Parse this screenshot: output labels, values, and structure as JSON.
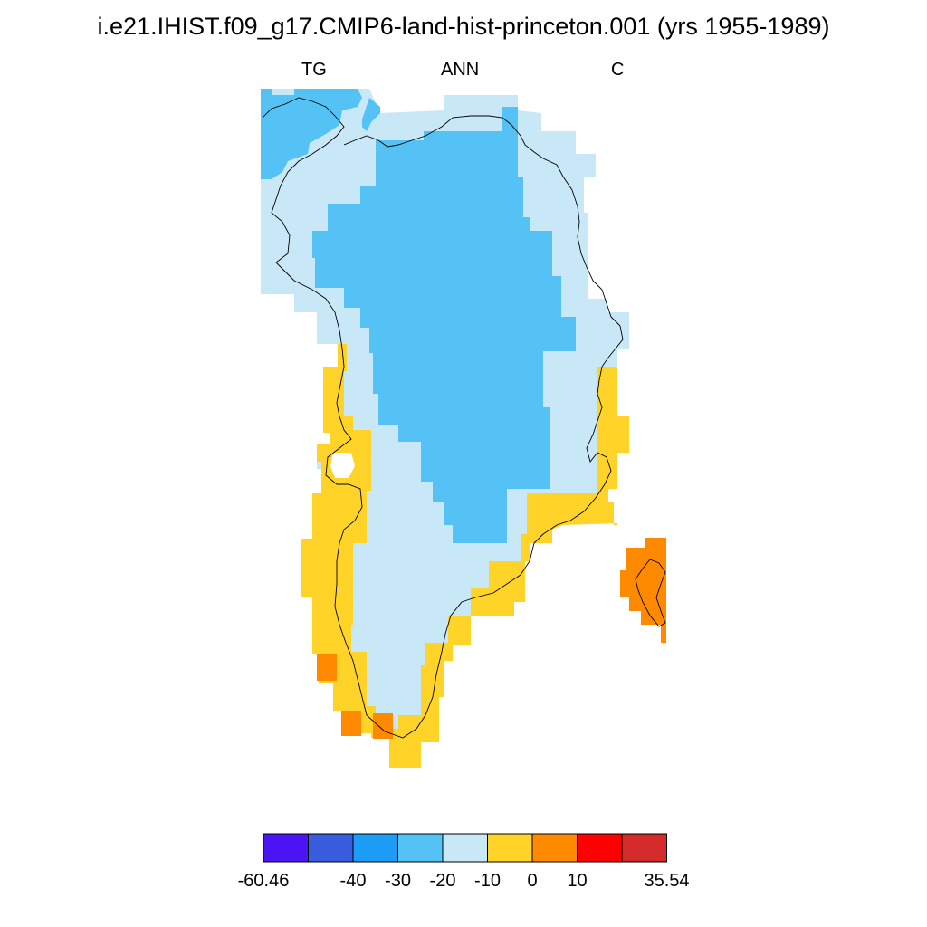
{
  "title": "i.e21.IHIST.f09_g17.CMIP6-land-hist-princeton.001 (yrs 1955-1989)",
  "subtitles": {
    "left": "TG",
    "center": "ANN",
    "right": "C"
  },
  "colorbar": {
    "colors": [
      "#4a14f5",
      "#3a5de0",
      "#1c9cf5",
      "#55c2f5",
      "#c8e7f7",
      "#ffd328",
      "#ff8a00",
      "#ff0000",
      "#d42a2a"
    ],
    "labels": [
      "-60.46",
      "-40",
      "-30",
      "-20",
      "-10",
      "0",
      "10",
      "35.54"
    ],
    "label_boundary_index": [
      0,
      2,
      3,
      4,
      5,
      6,
      7,
      9
    ]
  },
  "map_colors": {
    "light_blue": "#c8e7f7",
    "blue": "#55c2f5",
    "yellow": "#ffd328",
    "orange": "#ff8a00"
  }
}
